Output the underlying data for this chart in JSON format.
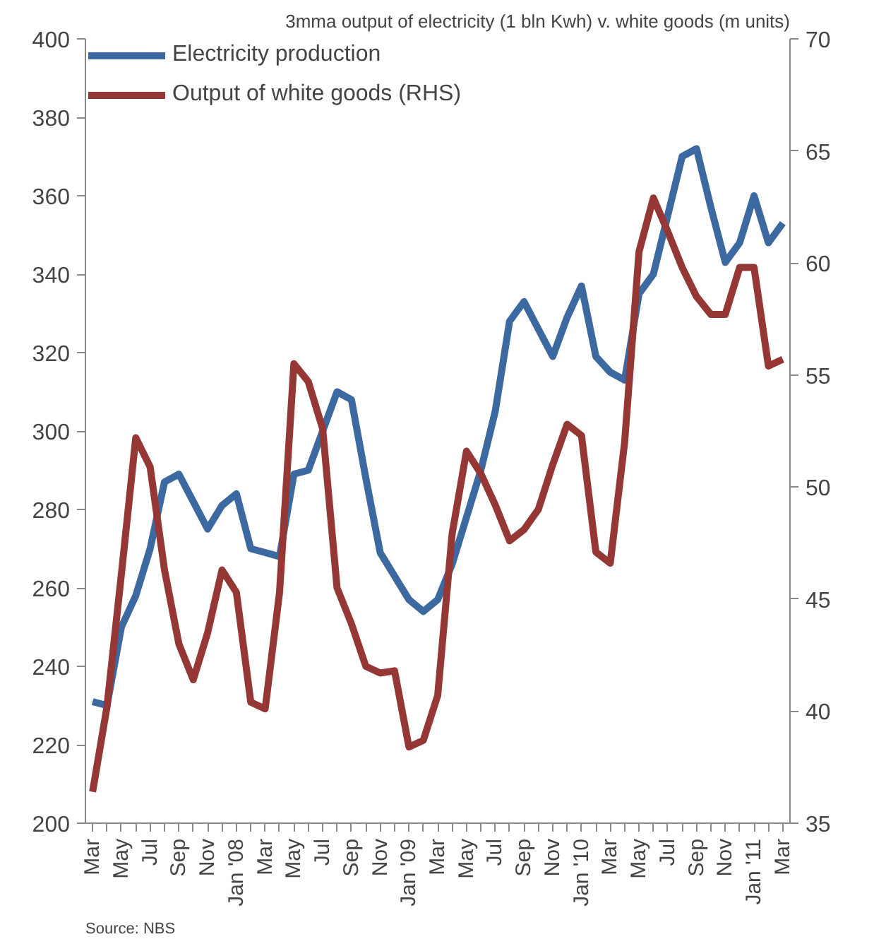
{
  "chart_data": {
    "type": "line",
    "title": "3mma output of electricity (1 bln Kwh) v. white goods (m units)",
    "categories": [
      "Mar",
      null,
      "May",
      null,
      "Jul",
      null,
      "Sep",
      null,
      "Nov",
      null,
      "Jan '08",
      null,
      "Mar",
      null,
      "May",
      null,
      "Jul",
      null,
      "Sep",
      null,
      "Nov",
      null,
      "Jan '09",
      null,
      "Mar",
      null,
      "May",
      null,
      "Jul",
      null,
      "Sep",
      null,
      "Nov",
      null,
      "Jan '10",
      null,
      "Mar",
      null,
      "May",
      null,
      "Jul",
      null,
      "Sep",
      null,
      "Nov",
      null,
      "Jan '11",
      null,
      "Mar"
    ],
    "series": [
      {
        "name": "Electricity production",
        "color": "#3c6aa0",
        "values": [
          231,
          230,
          250,
          258,
          270,
          287,
          289,
          282,
          275,
          281,
          284,
          270,
          269,
          268,
          289,
          290,
          300,
          310,
          308,
          288,
          269,
          263,
          257,
          254,
          257,
          266,
          278,
          290,
          305,
          328,
          333,
          326,
          319,
          329,
          337,
          319,
          315,
          313,
          335,
          340,
          355,
          370,
          372,
          357,
          343,
          348,
          360,
          348,
          353
        ]
      },
      {
        "name": "Output of white goods (RHS)",
        "color": "#953735",
        "axis": "y2",
        "values": [
          36.4,
          40.2,
          46.1,
          52.2,
          50.9,
          46.3,
          43.0,
          41.4,
          43.5,
          46.3,
          45.3,
          40.4,
          40.1,
          45.3,
          55.5,
          54.7,
          52.6,
          45.5,
          43.9,
          42.0,
          41.7,
          41.8,
          38.4,
          38.7,
          40.7,
          47.9,
          51.6,
          50.6,
          49.2,
          47.6,
          48.1,
          49.0,
          51.0,
          52.8,
          52.3,
          47.1,
          46.6,
          52.0,
          60.5,
          62.9,
          61.4,
          59.8,
          58.5,
          57.7,
          57.7,
          59.8,
          59.8,
          55.4,
          55.7
        ]
      }
    ],
    "ylim": [
      200,
      400
    ],
    "yticks": [
      200,
      220,
      240,
      260,
      280,
      300,
      320,
      340,
      360,
      380,
      400
    ],
    "y2lim": [
      35,
      70
    ],
    "y2ticks": [
      35,
      40,
      45,
      50,
      55,
      60,
      65,
      70
    ],
    "grid": false,
    "legend": "top left",
    "line_style": "solid",
    "marker": "none",
    "annotations": [
      "Source: NBS"
    ]
  }
}
